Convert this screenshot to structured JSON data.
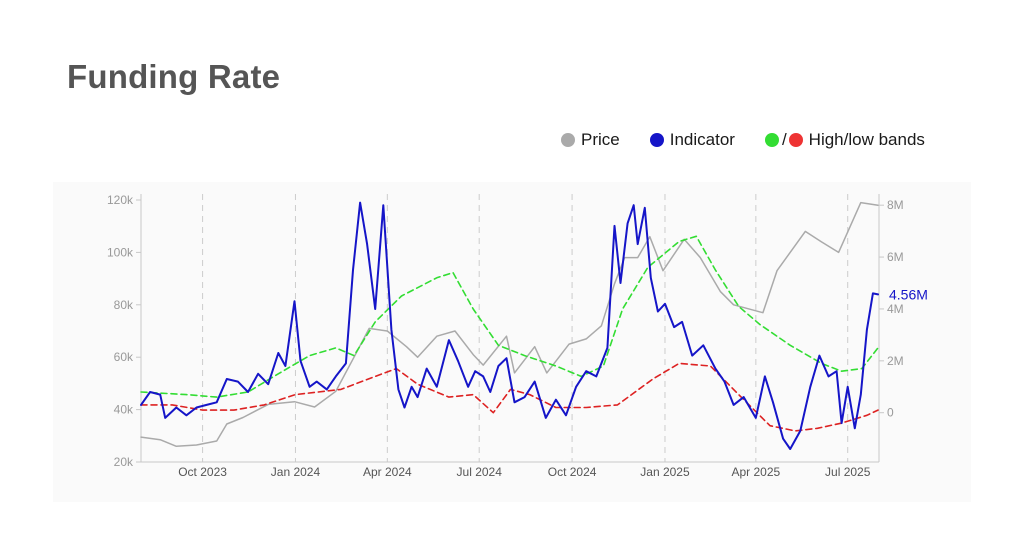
{
  "title": "Funding Rate",
  "legend": {
    "price_label": "Price",
    "indicator_label": "Indicator",
    "bands_label": "High/low bands",
    "bands_separator": "/"
  },
  "colors": {
    "price": "#aaaaaa",
    "indicator": "#1515c8",
    "high_band": "#33dd33",
    "low_band": "#dd2222",
    "title": "#555555"
  },
  "chart_data": {
    "type": "line",
    "title": "Funding Rate",
    "grid": "vertical dashed at x ticks",
    "legend_position": "top-right",
    "x_range": [
      "2023-08-01",
      "2025-08-01"
    ],
    "x_ticks": [
      {
        "date": "2023-10-01",
        "label": "Oct 2023"
      },
      {
        "date": "2024-01-01",
        "label": "Jan 2024"
      },
      {
        "date": "2024-04-01",
        "label": "Apr 2024"
      },
      {
        "date": "2024-07-01",
        "label": "Jul 2024"
      },
      {
        "date": "2024-10-01",
        "label": "Oct 2024"
      },
      {
        "date": "2025-01-01",
        "label": "Jan 2025"
      },
      {
        "date": "2025-04-01",
        "label": "Apr 2025"
      },
      {
        "date": "2025-07-01",
        "label": "Jul 2025"
      }
    ],
    "y_left": {
      "range": [
        20000,
        120000
      ],
      "ticks": [
        {
          "value": 20000,
          "label": "20k"
        },
        {
          "value": 40000,
          "label": "40k"
        },
        {
          "value": 60000,
          "label": "60k"
        },
        {
          "value": 80000,
          "label": "80k"
        },
        {
          "value": 100000,
          "label": "100k"
        },
        {
          "value": 120000,
          "label": "120k"
        }
      ]
    },
    "y_right": {
      "range": [
        -1900000,
        8200000
      ],
      "ticks": [
        {
          "value": 0,
          "label": "0"
        },
        {
          "value": 2000000,
          "label": "2M"
        },
        {
          "value": 4000000,
          "label": "4M"
        },
        {
          "value": 6000000,
          "label": "6M"
        },
        {
          "value": 8000000,
          "label": "8M"
        }
      ]
    },
    "last_value_label": "4.56M",
    "series": [
      {
        "name": "Price",
        "axis": "left",
        "style": "solid",
        "points": [
          [
            "2023-08-01",
            29500
          ],
          [
            "2023-08-20",
            28500
          ],
          [
            "2023-09-05",
            26000
          ],
          [
            "2023-09-25",
            26500
          ],
          [
            "2023-10-15",
            28000
          ],
          [
            "2023-10-25",
            34500
          ],
          [
            "2023-11-10",
            37000
          ],
          [
            "2023-12-05",
            42000
          ],
          [
            "2023-12-31",
            43000
          ],
          [
            "2024-01-20",
            41000
          ],
          [
            "2024-02-10",
            47000
          ],
          [
            "2024-02-28",
            60000
          ],
          [
            "2024-03-14",
            71000
          ],
          [
            "2024-04-01",
            70000
          ],
          [
            "2024-04-20",
            64000
          ],
          [
            "2024-05-01",
            60000
          ],
          [
            "2024-05-20",
            68000
          ],
          [
            "2024-06-07",
            70000
          ],
          [
            "2024-06-25",
            61000
          ],
          [
            "2024-07-05",
            57000
          ],
          [
            "2024-07-28",
            68000
          ],
          [
            "2024-08-05",
            54000
          ],
          [
            "2024-08-25",
            64000
          ],
          [
            "2024-09-06",
            54000
          ],
          [
            "2024-09-28",
            65000
          ],
          [
            "2024-10-15",
            67000
          ],
          [
            "2024-10-30",
            72000
          ],
          [
            "2024-11-12",
            88000
          ],
          [
            "2024-11-22",
            98000
          ],
          [
            "2024-12-05",
            98000
          ],
          [
            "2024-12-17",
            106000
          ],
          [
            "2024-12-30",
            93000
          ],
          [
            "2025-01-20",
            105000
          ],
          [
            "2025-02-05",
            98000
          ],
          [
            "2025-02-25",
            85000
          ],
          [
            "2025-03-10",
            80000
          ],
          [
            "2025-04-08",
            77000
          ],
          [
            "2025-04-22",
            93000
          ],
          [
            "2025-05-20",
            108000
          ],
          [
            "2025-06-05",
            104000
          ],
          [
            "2025-06-22",
            100000
          ],
          [
            "2025-07-14",
            119000
          ],
          [
            "2025-07-31",
            118000
          ]
        ]
      },
      {
        "name": "Indicator",
        "axis": "right",
        "style": "solid",
        "points": [
          [
            "2023-08-01",
            300000
          ],
          [
            "2023-08-10",
            800000
          ],
          [
            "2023-08-20",
            700000
          ],
          [
            "2023-08-25",
            -200000
          ],
          [
            "2023-09-05",
            200000
          ],
          [
            "2023-09-15",
            -100000
          ],
          [
            "2023-09-25",
            200000
          ],
          [
            "2023-10-05",
            300000
          ],
          [
            "2023-10-15",
            400000
          ],
          [
            "2023-10-25",
            1300000
          ],
          [
            "2023-11-05",
            1200000
          ],
          [
            "2023-11-15",
            800000
          ],
          [
            "2023-11-25",
            1500000
          ],
          [
            "2023-12-05",
            1100000
          ],
          [
            "2023-12-15",
            2300000
          ],
          [
            "2023-12-22",
            1800000
          ],
          [
            "2023-12-31",
            4300000
          ],
          [
            "2024-01-06",
            2000000
          ],
          [
            "2024-01-15",
            1000000
          ],
          [
            "2024-01-22",
            1200000
          ],
          [
            "2024-02-01",
            900000
          ],
          [
            "2024-02-10",
            1400000
          ],
          [
            "2024-02-20",
            1900000
          ],
          [
            "2024-02-27",
            5500000
          ],
          [
            "2024-03-05",
            8100000
          ],
          [
            "2024-03-12",
            6500000
          ],
          [
            "2024-03-20",
            4000000
          ],
          [
            "2024-03-28",
            8000000
          ],
          [
            "2024-04-05",
            3200000
          ],
          [
            "2024-04-12",
            900000
          ],
          [
            "2024-04-18",
            200000
          ],
          [
            "2024-04-25",
            1000000
          ],
          [
            "2024-05-01",
            600000
          ],
          [
            "2024-05-10",
            1700000
          ],
          [
            "2024-05-20",
            1000000
          ],
          [
            "2024-06-01",
            2800000
          ],
          [
            "2024-06-10",
            2000000
          ],
          [
            "2024-06-20",
            1000000
          ],
          [
            "2024-06-27",
            1600000
          ],
          [
            "2024-07-05",
            1400000
          ],
          [
            "2024-07-12",
            800000
          ],
          [
            "2024-07-20",
            1800000
          ],
          [
            "2024-07-28",
            2100000
          ],
          [
            "2024-08-05",
            400000
          ],
          [
            "2024-08-15",
            600000
          ],
          [
            "2024-08-25",
            1200000
          ],
          [
            "2024-09-05",
            -200000
          ],
          [
            "2024-09-15",
            500000
          ],
          [
            "2024-09-25",
            -100000
          ],
          [
            "2024-10-05",
            1000000
          ],
          [
            "2024-10-15",
            1600000
          ],
          [
            "2024-10-25",
            1400000
          ],
          [
            "2024-11-05",
            2500000
          ],
          [
            "2024-11-12",
            7200000
          ],
          [
            "2024-11-18",
            5000000
          ],
          [
            "2024-11-25",
            7300000
          ],
          [
            "2024-12-01",
            8000000
          ],
          [
            "2024-12-05",
            6500000
          ],
          [
            "2024-12-12",
            7900000
          ],
          [
            "2024-12-18",
            5200000
          ],
          [
            "2024-12-25",
            3900000
          ],
          [
            "2025-01-01",
            4200000
          ],
          [
            "2025-01-10",
            3300000
          ],
          [
            "2025-01-18",
            3500000
          ],
          [
            "2025-01-28",
            2200000
          ],
          [
            "2025-02-08",
            2600000
          ],
          [
            "2025-02-20",
            1700000
          ],
          [
            "2025-03-01",
            1200000
          ],
          [
            "2025-03-10",
            300000
          ],
          [
            "2025-03-20",
            600000
          ],
          [
            "2025-04-01",
            -200000
          ],
          [
            "2025-04-10",
            1400000
          ],
          [
            "2025-04-18",
            400000
          ],
          [
            "2025-04-28",
            -1000000
          ],
          [
            "2025-05-05",
            -1400000
          ],
          [
            "2025-05-15",
            -700000
          ],
          [
            "2025-05-25",
            1000000
          ],
          [
            "2025-06-03",
            2200000
          ],
          [
            "2025-06-12",
            1400000
          ],
          [
            "2025-06-20",
            1600000
          ],
          [
            "2025-06-25",
            -400000
          ],
          [
            "2025-07-01",
            1000000
          ],
          [
            "2025-07-08",
            -600000
          ],
          [
            "2025-07-14",
            700000
          ],
          [
            "2025-07-20",
            3200000
          ],
          [
            "2025-07-26",
            4600000
          ],
          [
            "2025-07-31",
            4560000
          ]
        ]
      },
      {
        "name": "High/low bands",
        "axis": "right",
        "style": "dashed",
        "band": "high",
        "points": [
          [
            "2023-08-01",
            800000
          ],
          [
            "2023-09-15",
            700000
          ],
          [
            "2023-10-15",
            600000
          ],
          [
            "2023-11-15",
            800000
          ],
          [
            "2023-12-15",
            1500000
          ],
          [
            "2024-01-15",
            2200000
          ],
          [
            "2024-02-10",
            2500000
          ],
          [
            "2024-02-28",
            2200000
          ],
          [
            "2024-03-20",
            3500000
          ],
          [
            "2024-04-15",
            4500000
          ],
          [
            "2024-05-20",
            5200000
          ],
          [
            "2024-06-05",
            5400000
          ],
          [
            "2024-06-25",
            4000000
          ],
          [
            "2024-07-20",
            2600000
          ],
          [
            "2024-08-15",
            2200000
          ],
          [
            "2024-09-15",
            1800000
          ],
          [
            "2024-10-10",
            1400000
          ],
          [
            "2024-11-01",
            1800000
          ],
          [
            "2024-11-20",
            4000000
          ],
          [
            "2024-12-15",
            5600000
          ],
          [
            "2025-01-15",
            6600000
          ],
          [
            "2025-02-01",
            6800000
          ],
          [
            "2025-02-20",
            5500000
          ],
          [
            "2025-03-15",
            4100000
          ],
          [
            "2025-04-05",
            3400000
          ],
          [
            "2025-05-05",
            2600000
          ],
          [
            "2025-06-05",
            1900000
          ],
          [
            "2025-06-25",
            1600000
          ],
          [
            "2025-07-15",
            1700000
          ],
          [
            "2025-07-31",
            2500000
          ]
        ]
      },
      {
        "name": "",
        "axis": "right",
        "style": "dashed",
        "band": "low",
        "points": [
          [
            "2023-08-01",
            300000
          ],
          [
            "2023-09-01",
            300000
          ],
          [
            "2023-10-01",
            100000
          ],
          [
            "2023-11-01",
            100000
          ],
          [
            "2023-12-01",
            300000
          ],
          [
            "2024-01-01",
            700000
          ],
          [
            "2024-02-15",
            900000
          ],
          [
            "2024-03-20",
            1400000
          ],
          [
            "2024-04-10",
            1700000
          ],
          [
            "2024-05-01",
            1100000
          ],
          [
            "2024-06-01",
            600000
          ],
          [
            "2024-06-25",
            700000
          ],
          [
            "2024-07-15",
            0
          ],
          [
            "2024-08-01",
            900000
          ],
          [
            "2024-08-20",
            700000
          ],
          [
            "2024-09-15",
            200000
          ],
          [
            "2024-10-15",
            200000
          ],
          [
            "2024-11-15",
            300000
          ],
          [
            "2024-12-20",
            1300000
          ],
          [
            "2025-01-15",
            1900000
          ],
          [
            "2025-02-15",
            1800000
          ],
          [
            "2025-03-15",
            700000
          ],
          [
            "2025-04-15",
            -500000
          ],
          [
            "2025-05-10",
            -700000
          ],
          [
            "2025-06-01",
            -600000
          ],
          [
            "2025-06-25",
            -400000
          ],
          [
            "2025-07-20",
            -100000
          ],
          [
            "2025-07-31",
            100000
          ]
        ]
      }
    ]
  }
}
